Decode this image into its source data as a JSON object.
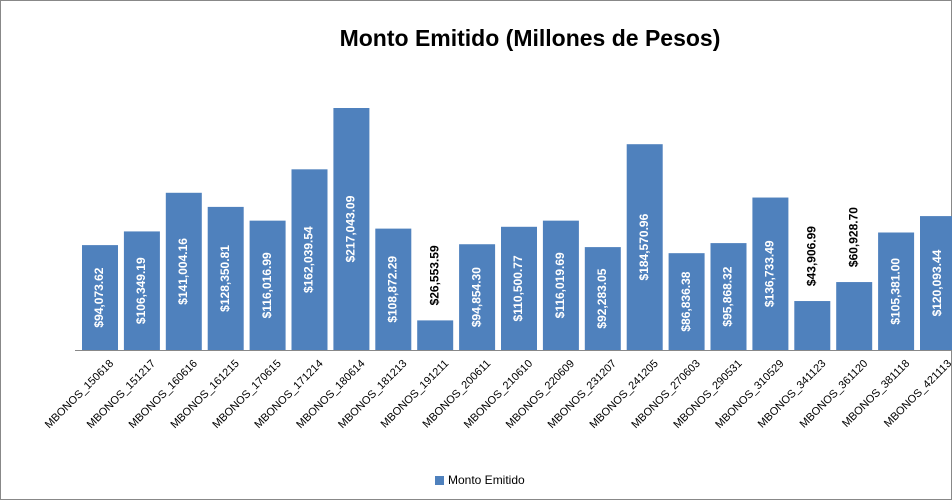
{
  "chart_data": {
    "type": "bar",
    "title": "Monto Emitido (Millones de Pesos)",
    "categories": [
      "MBONOS_150618",
      "MBONOS_151217",
      "MBONOS_160616",
      "MBONOS_161215",
      "MBONOS_170615",
      "MBONOS_171214",
      "MBONOS_180614",
      "MBONOS_181213",
      "MBONOS_191211",
      "MBONOS_200611",
      "MBONOS_210610",
      "MBONOS_220609",
      "MBONOS_231207",
      "MBONOS_241205",
      "MBONOS_270603",
      "MBONOS_290531",
      "MBONOS_310529",
      "MBONOS_341123",
      "MBONOS_361120",
      "MBONOS_381118",
      "MBONOS_421113"
    ],
    "series": [
      {
        "name": "Monto Emitido",
        "color": "#4f81bd",
        "values": [
          94073.62,
          106349.19,
          141004.16,
          128350.81,
          116016.99,
          162039.54,
          217043.09,
          108872.29,
          26553.59,
          94854.3,
          110500.77,
          116019.69,
          92283.05,
          184570.96,
          86836.38,
          95868.32,
          136733.49,
          43906.99,
          60928.7,
          105381.0,
          120093.44
        ],
        "value_labels": [
          "$94,073.62",
          "$106,349.19",
          "$141,004.16",
          "$128,350.81",
          "$116,016.99",
          "$162,039.54",
          "$217,043.09",
          "$108,872.29",
          "$26,553.59",
          "$94,854.30",
          "$110,500.77",
          "$116,019.69",
          "$92,283.05",
          "$184,570.96",
          "$86,836.38",
          "$95,868.32",
          "$136,733.49",
          "$43,906.99",
          "$60,928.70",
          "$105,381.00",
          "$120,093.44"
        ]
      }
    ],
    "legend": "bottom"
  }
}
